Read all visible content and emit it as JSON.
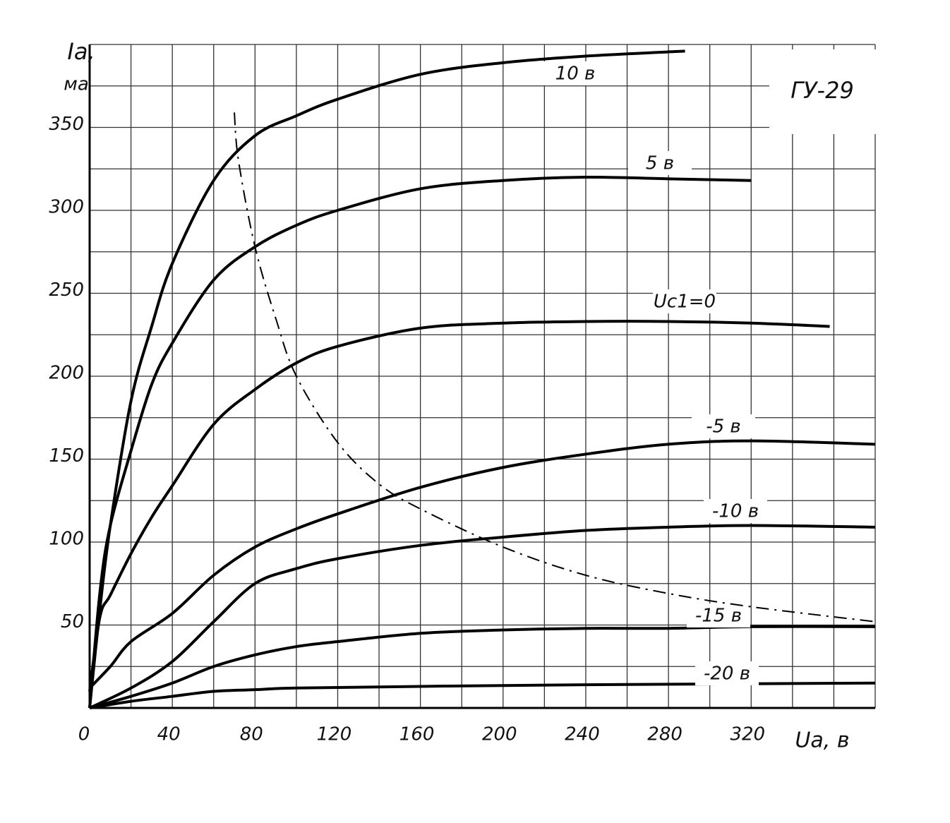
{
  "chart_data": {
    "type": "line",
    "title": "ГУ-29",
    "xlabel": "Uа, в",
    "ylabel": "Iа,",
    "yunit": "ма",
    "xlim": [
      0,
      380
    ],
    "ylim": [
      0,
      400
    ],
    "xticks": [
      0,
      40,
      80,
      120,
      160,
      200,
      240,
      280,
      320
    ],
    "yticks": [
      50,
      100,
      150,
      200,
      250,
      300,
      350
    ],
    "xgrid": [
      0,
      20,
      40,
      60,
      80,
      100,
      120,
      140,
      160,
      180,
      200,
      220,
      240,
      260,
      280,
      300,
      320,
      340,
      360,
      380
    ],
    "ygrid": [
      0,
      25,
      50,
      75,
      100,
      125,
      150,
      175,
      200,
      225,
      250,
      275,
      300,
      325,
      350,
      375,
      400
    ],
    "grid": true,
    "series": [
      {
        "name": "10 в",
        "color": "#000000",
        "x": [
          0,
          5,
          10,
          20,
          30,
          40,
          60,
          80,
          100,
          120,
          160,
          200,
          240,
          288
        ],
        "values": [
          0,
          60,
          110,
          185,
          230,
          268,
          318,
          345,
          357,
          367,
          382,
          389,
          393,
          396
        ]
      },
      {
        "name": "5 в",
        "color": "#000000",
        "x": [
          0,
          5,
          10,
          20,
          30,
          40,
          60,
          80,
          100,
          120,
          160,
          200,
          240,
          280,
          320
        ],
        "values": [
          0,
          70,
          110,
          155,
          195,
          220,
          258,
          278,
          291,
          300,
          313,
          318,
          320,
          319,
          318
        ]
      },
      {
        "name": "Uc1=0",
        "color": "#000000",
        "x": [
          0,
          5,
          10,
          20,
          30,
          40,
          60,
          80,
          100,
          120,
          160,
          200,
          240,
          280,
          320,
          358
        ],
        "values": [
          10,
          55,
          68,
          93,
          115,
          134,
          171,
          192,
          208,
          218,
          229,
          232,
          233,
          233,
          232,
          230
        ]
      },
      {
        "name": "-5 в",
        "color": "#000000",
        "x": [
          0,
          10,
          20,
          40,
          60,
          80,
          100,
          120,
          160,
          200,
          240,
          280,
          320,
          380
        ],
        "values": [
          12,
          25,
          40,
          57,
          80,
          97,
          108,
          117,
          133,
          145,
          153,
          159,
          161,
          159
        ]
      },
      {
        "name": "-10 в",
        "color": "#000000",
        "x": [
          0,
          20,
          40,
          60,
          80,
          100,
          120,
          160,
          200,
          240,
          280,
          320,
          380
        ],
        "values": [
          0,
          12,
          28,
          52,
          75,
          84,
          90,
          98,
          103,
          107,
          109,
          110,
          109
        ]
      },
      {
        "name": "-15 в",
        "color": "#000000",
        "x": [
          0,
          20,
          40,
          60,
          80,
          100,
          120,
          160,
          200,
          240,
          280,
          320,
          380
        ],
        "values": [
          0,
          7,
          15,
          25,
          32,
          37,
          40,
          45,
          47,
          48,
          48,
          49,
          49
        ]
      },
      {
        "name": "-20 в",
        "color": "#000000",
        "x": [
          0,
          20,
          40,
          60,
          80,
          100,
          160,
          240,
          380
        ],
        "values": [
          0,
          4,
          7,
          10,
          11,
          12,
          13,
          14,
          15
        ]
      },
      {
        "color": "#000000",
        "dash": "dashdot",
        "x": [
          70,
          72,
          80,
          90,
          100,
          120,
          140,
          160,
          200,
          240,
          280,
          320,
          380
        ],
        "values": [
          359,
          330,
          278,
          235,
          200,
          160,
          135,
          120,
          97,
          80,
          69,
          61,
          52
        ]
      }
    ]
  }
}
